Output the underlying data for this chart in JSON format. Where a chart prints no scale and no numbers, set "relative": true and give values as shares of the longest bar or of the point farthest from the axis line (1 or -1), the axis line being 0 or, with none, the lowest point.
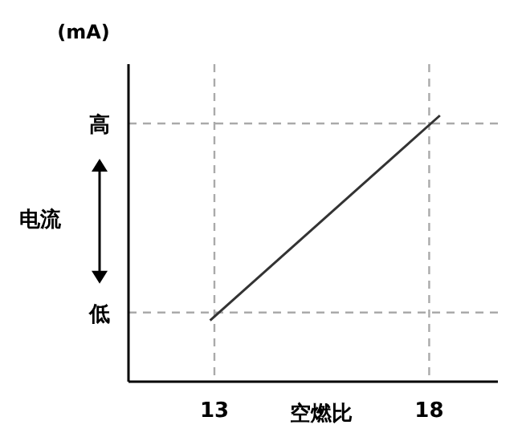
{
  "chart_data": {
    "type": "line",
    "xlabel": "空燃比",
    "ylabel": "电流",
    "annotations": [
      "(mA)"
    ],
    "relative": true,
    "x": [
      12.9,
      18.25
    ],
    "series": [
      {
        "color": "#333333",
        "values": [
          0.23,
          1.0
        ]
      }
    ],
    "xlim": [
      11.0,
      19.6
    ],
    "xticks": [
      13,
      18
    ],
    "ref_lines": [
      {
        "axis": "x",
        "value": 13,
        "color": "#aaaaaa",
        "line_style": "dashed"
      },
      {
        "axis": "x",
        "value": 18,
        "color": "#aaaaaa",
        "line_style": "dashed"
      },
      {
        "axis": "y",
        "value": 0.26,
        "label": "低",
        "color": "#aaaaaa",
        "line_style": "dashed"
      },
      {
        "axis": "y",
        "value": 0.97,
        "label": "高",
        "color": "#aaaaaa",
        "line_style": "dashed"
      }
    ]
  }
}
